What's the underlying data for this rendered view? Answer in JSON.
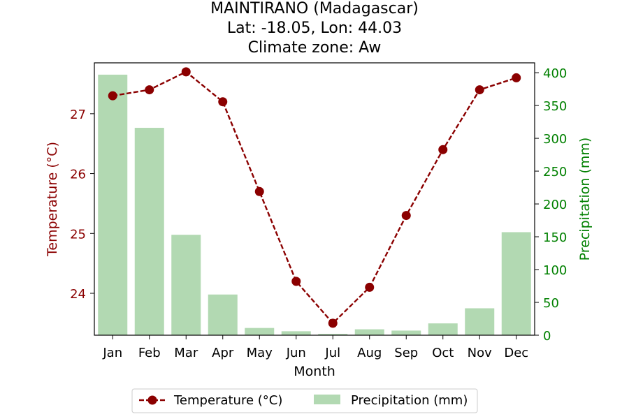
{
  "chart_data": {
    "type": "bar+line",
    "title_lines": [
      "MAINTIRANO (Madagascar)",
      "Lat: -18.05, Lon: 44.03",
      "Climate zone: Aw"
    ],
    "xlabel": "Month",
    "ylabel_left": "Temperature (°C)",
    "ylabel_right": "Precipitation (mm)",
    "categories": [
      "Jan",
      "Feb",
      "Mar",
      "Apr",
      "May",
      "Jun",
      "Jul",
      "Aug",
      "Sep",
      "Oct",
      "Nov",
      "Dec"
    ],
    "temperature": {
      "name": "Temperature (°C)",
      "values": [
        27.3,
        27.4,
        27.7,
        27.2,
        25.7,
        24.2,
        23.5,
        24.1,
        25.3,
        26.4,
        27.4,
        27.6
      ],
      "ylim": [
        23.3,
        27.85
      ],
      "ticks": [
        24,
        25,
        26,
        27
      ],
      "color": "#8b0000",
      "style": "dashed line with circle markers"
    },
    "precipitation": {
      "name": "Precipitation (mm)",
      "values": [
        397,
        316,
        153,
        62,
        11,
        6,
        2,
        9,
        7,
        18,
        41,
        157
      ],
      "ylim": [
        0,
        415
      ],
      "ticks": [
        0,
        50,
        100,
        150,
        200,
        250,
        300,
        350,
        400
      ],
      "color": "#b2d9b2",
      "axis_color": "#008000"
    },
    "legend": {
      "placement": "bottom-center",
      "entries": [
        "Temperature (°C)",
        "Precipitation (mm)"
      ]
    },
    "grid": false
  }
}
